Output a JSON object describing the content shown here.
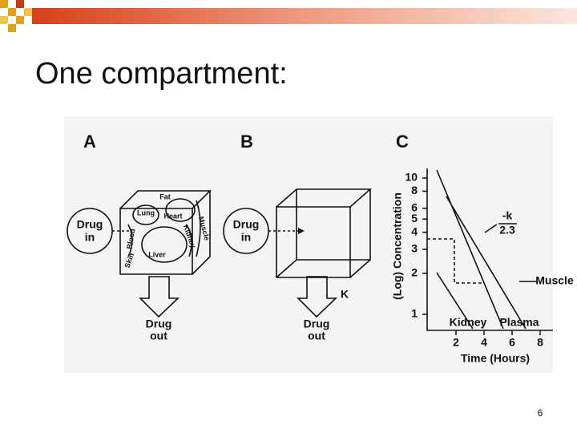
{
  "header": {
    "title": "One compartment:"
  },
  "figure": {
    "panel_a": {
      "label": "A",
      "drug_in": [
        "Drug",
        "in"
      ],
      "drug_out": [
        "Drug",
        "out"
      ],
      "organs": [
        "Fat",
        "Lung",
        "Heart",
        "Kidney",
        "Muscle",
        "Blood",
        "Skin",
        "Liver"
      ]
    },
    "panel_b": {
      "label": "B",
      "drug_in": [
        "Drug",
        "in"
      ],
      "drug_out": [
        "Drug",
        "out"
      ],
      "rate": "K"
    },
    "panel_c": {
      "label": "C",
      "y_label": "(Log) Concentration",
      "x_label": "Time (Hours)",
      "yticks": [
        1,
        2,
        3,
        4,
        5,
        6,
        8,
        10
      ],
      "xticks": [
        2,
        4,
        6,
        8
      ],
      "slope": {
        "numerator": "-k",
        "denominator": "2.3"
      },
      "curves": [
        "Kidney",
        "Plasma",
        "Muscle"
      ]
    }
  },
  "page_number": "6"
}
